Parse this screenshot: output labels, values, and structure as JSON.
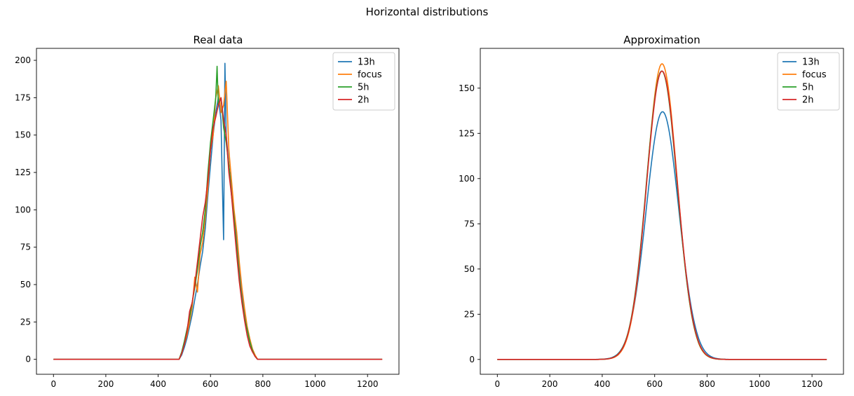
{
  "figure": {
    "suptitle": "Horizontal distributions"
  },
  "colors": {
    "13h": "#1f77b4",
    "focus": "#ff7f0e",
    "5h": "#2ca02c",
    "2h": "#d62728"
  },
  "chart_data": [
    {
      "type": "line",
      "title": "Real data",
      "xlabel": "",
      "ylabel": "",
      "xlim": [
        -65,
        1320
      ],
      "ylim": [
        -10,
        208
      ],
      "xticks": [
        0,
        200,
        400,
        600,
        800,
        1000,
        1200
      ],
      "yticks": [
        0,
        25,
        50,
        75,
        100,
        125,
        150,
        175,
        200
      ],
      "grid": false,
      "legend": "top-right",
      "series": [
        {
          "name": "13h",
          "x": [
            0,
            480,
            490,
            500,
            510,
            520,
            530,
            540,
            550,
            560,
            570,
            580,
            590,
            600,
            610,
            620,
            630,
            640,
            645,
            650,
            655,
            660,
            670,
            680,
            690,
            700,
            710,
            720,
            730,
            740,
            750,
            760,
            770,
            780,
            1256
          ],
          "y": [
            0,
            0,
            3,
            8,
            14,
            22,
            30,
            40,
            50,
            62,
            72,
            88,
            110,
            130,
            150,
            165,
            175,
            160,
            120,
            80,
            198,
            150,
            130,
            115,
            95,
            80,
            60,
            45,
            30,
            20,
            12,
            6,
            2,
            0,
            0
          ]
        },
        {
          "name": "focus",
          "x": [
            0,
            480,
            490,
            500,
            510,
            520,
            530,
            540,
            550,
            560,
            570,
            580,
            590,
            600,
            610,
            620,
            630,
            640,
            650,
            660,
            670,
            680,
            690,
            700,
            710,
            720,
            730,
            740,
            750,
            760,
            770,
            780,
            1256
          ],
          "y": [
            0,
            0,
            4,
            10,
            16,
            25,
            35,
            55,
            45,
            70,
            78,
            95,
            115,
            140,
            150,
            175,
            183,
            165,
            170,
            186,
            140,
            120,
            100,
            85,
            65,
            48,
            34,
            22,
            14,
            7,
            3,
            0,
            0
          ]
        },
        {
          "name": "5h",
          "x": [
            0,
            480,
            490,
            500,
            510,
            520,
            530,
            540,
            550,
            560,
            570,
            580,
            590,
            600,
            610,
            620,
            625,
            630,
            640,
            650,
            660,
            670,
            680,
            690,
            700,
            710,
            720,
            730,
            740,
            750,
            760,
            770,
            780,
            1256
          ],
          "y": [
            0,
            0,
            5,
            12,
            20,
            28,
            38,
            48,
            60,
            75,
            85,
            100,
            125,
            145,
            160,
            175,
            196,
            170,
            175,
            155,
            145,
            130,
            110,
            95,
            75,
            55,
            40,
            28,
            20,
            12,
            6,
            2,
            0,
            0
          ]
        },
        {
          "name": "2h",
          "x": [
            0,
            480,
            490,
            500,
            510,
            520,
            530,
            540,
            550,
            560,
            570,
            580,
            590,
            600,
            610,
            620,
            630,
            640,
            650,
            660,
            670,
            680,
            690,
            700,
            710,
            720,
            730,
            740,
            750,
            760,
            770,
            780,
            1256
          ],
          "y": [
            0,
            0,
            4,
            10,
            18,
            32,
            38,
            50,
            65,
            80,
            95,
            105,
            120,
            140,
            155,
            162,
            170,
            175,
            160,
            150,
            125,
            110,
            90,
            70,
            52,
            38,
            26,
            16,
            9,
            5,
            2,
            0,
            0
          ]
        }
      ]
    },
    {
      "type": "line",
      "title": "Approximation",
      "xlabel": "",
      "ylabel": "",
      "xlim": [
        -65,
        1320
      ],
      "ylim": [
        -8.2,
        172
      ],
      "xticks": [
        0,
        200,
        400,
        600,
        800,
        1000,
        1200
      ],
      "yticks": [
        0,
        25,
        50,
        75,
        100,
        125,
        150
      ],
      "grid": false,
      "legend": "top-right",
      "x_range": [
        0,
        1256
      ],
      "series": [
        {
          "name": "13h",
          "model": "gaussian",
          "amplitude": 137,
          "mean": 630,
          "sigma": 62
        },
        {
          "name": "focus",
          "model": "gaussian",
          "amplitude": 163.5,
          "mean": 628,
          "sigma": 58
        },
        {
          "name": "5h",
          "model": "gaussian",
          "amplitude": 159.5,
          "mean": 627,
          "sigma": 59
        },
        {
          "name": "2h",
          "model": "gaussian",
          "amplitude": 159.5,
          "mean": 628,
          "sigma": 59
        }
      ]
    }
  ]
}
